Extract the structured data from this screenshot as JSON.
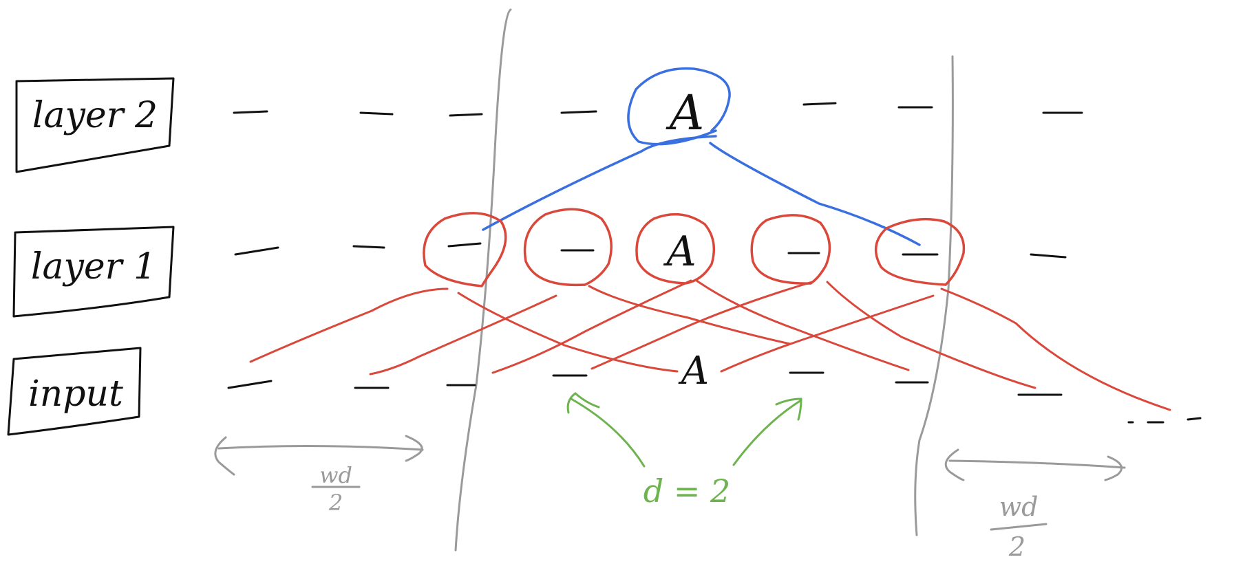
{
  "layers": [
    {
      "id": "layer2",
      "label": "layer 2"
    },
    {
      "id": "layer1",
      "label": "layer 1"
    },
    {
      "id": "input",
      "label": "input"
    }
  ],
  "node_labels": {
    "layer2_focus": "A",
    "layer1_focus": "A",
    "input_focus": "A"
  },
  "annotations": {
    "window_left_numer": "wd",
    "window_left_denom": "2",
    "window_right_numer": "wd",
    "window_right_denom": "2",
    "dilation": "d = 2",
    "ellipsis": ". . ."
  },
  "colors": {
    "ink": "#111111",
    "boundary": "#9a9a9a",
    "layer2_attention": "#3a6fe0",
    "layer1_attention": "#d9483b",
    "dilation_arrows": "#6db34f"
  }
}
